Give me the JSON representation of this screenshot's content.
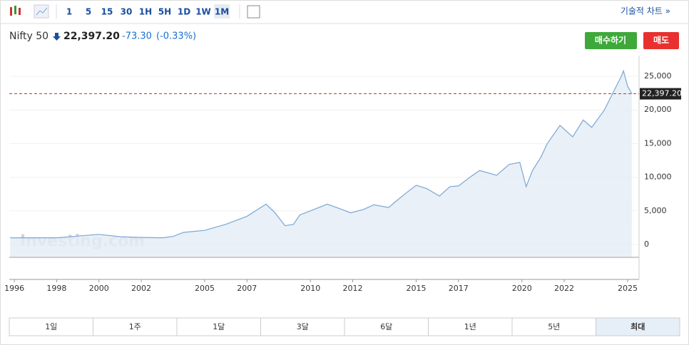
{
  "toolbar": {
    "intervals": [
      "1",
      "5",
      "15",
      "30",
      "1H",
      "5H",
      "1D",
      "1W",
      "1M"
    ],
    "technical": "기술적 차트 »"
  },
  "header": {
    "name": "Nifty 50",
    "price": "22,397.20",
    "change": "-73.30",
    "change_pct": "(-0.33%)",
    "buy": "매수하기",
    "sell": "매도"
  },
  "watermark": "Investing.com",
  "ranges": [
    "1일",
    "1주",
    "1달",
    "3달",
    "6달",
    "1년",
    "5년",
    "최대"
  ],
  "chart_data": {
    "type": "line",
    "color": "#7ba7d1",
    "x": [
      1995.8,
      1998,
      2000,
      2001,
      2002,
      2003,
      2003.5,
      2004,
      2005,
      2006,
      2007,
      2007.9,
      2008.3,
      2008.8,
      2009.2,
      2009.5,
      2010,
      2010.8,
      2011.5,
      2011.9,
      2012.5,
      2013,
      2013.7,
      2014,
      2014.5,
      2015,
      2015.5,
      2016.1,
      2016.6,
      2017,
      2017.5,
      2018,
      2018.8,
      2019.4,
      2019.9,
      2020.2,
      2020.5,
      2020.9,
      2021.2,
      2021.8,
      2022.4,
      2022.9,
      2023.3,
      2023.9,
      2024.3,
      2024.7,
      2024.8,
      2025.0,
      2025.2
    ],
    "values": [
      1000,
      1000,
      1500,
      1150,
      1050,
      1000,
      1200,
      1800,
      2100,
      3000,
      4200,
      6000,
      4800,
      2800,
      3000,
      4400,
      5000,
      6000,
      5200,
      4700,
      5200,
      5900,
      5500,
      6300,
      7600,
      8800,
      8300,
      7200,
      8600,
      8700,
      9900,
      11000,
      10300,
      11900,
      12200,
      8600,
      11000,
      13000,
      15000,
      17700,
      16000,
      18500,
      17400,
      20000,
      22500,
      25000,
      25800,
      23500,
      22397.2
    ],
    "last_price": {
      "value": 22397.2,
      "label": "22,397.20"
    },
    "xlim": [
      1995.76,
      2025.54
    ],
    "xticks": [
      1996,
      1998,
      2000,
      2002,
      2005,
      2007,
      2010,
      2012,
      2015,
      2017,
      2020,
      2022,
      2025
    ],
    "ylim": [
      -1800,
      28070
    ],
    "yticks": [
      0,
      {
        "value": 5000,
        "label": "5,000"
      },
      {
        "value": 10000,
        "label": "10,000"
      },
      {
        "value": 15000,
        "label": "15,000"
      },
      {
        "value": 20000,
        "label": "20,000"
      },
      {
        "value": 25000,
        "label": "25,000"
      }
    ]
  }
}
